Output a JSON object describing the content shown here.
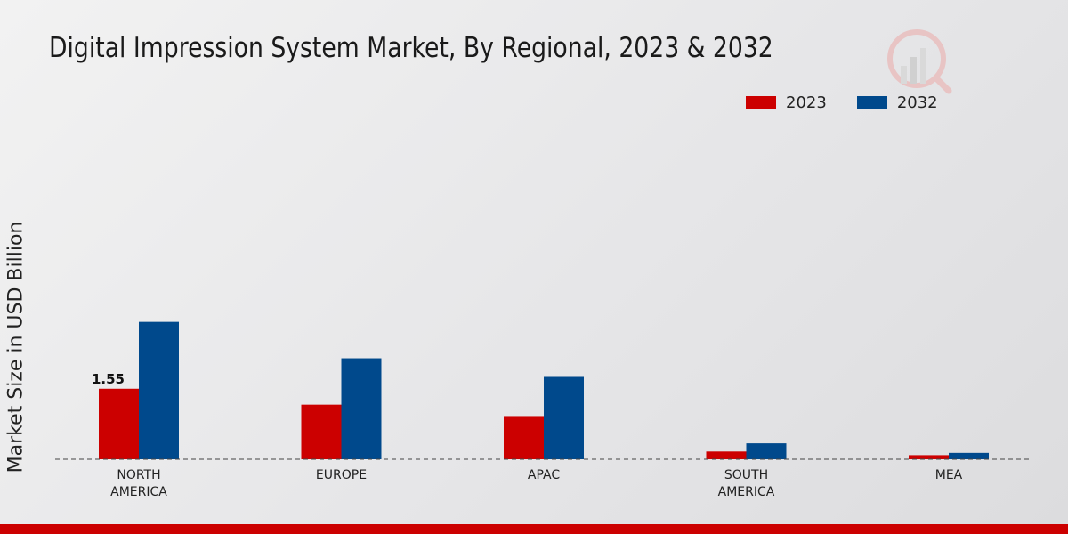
{
  "chart_data": {
    "type": "bar",
    "title": "Digital Impression System Market, By Regional, 2023 & 2032",
    "ylabel": "Market Size in USD Billion",
    "xlabel": "",
    "categories": [
      "NORTH\nAMERICA",
      "EUROPE",
      "APAC",
      "SOUTH\nAMERICA",
      "MEA"
    ],
    "series": [
      {
        "name": "2023",
        "color": "#cc0000",
        "values": [
          1.55,
          1.2,
          0.95,
          0.17,
          0.09
        ]
      },
      {
        "name": "2032",
        "color": "#00498c",
        "values": [
          3.02,
          2.22,
          1.81,
          0.35,
          0.14
        ]
      }
    ],
    "data_labels": [
      {
        "series": 0,
        "index": 0,
        "text": "1.55"
      }
    ],
    "ylim": [
      0,
      5.4
    ],
    "grid": false,
    "legend_position": "top-right"
  }
}
